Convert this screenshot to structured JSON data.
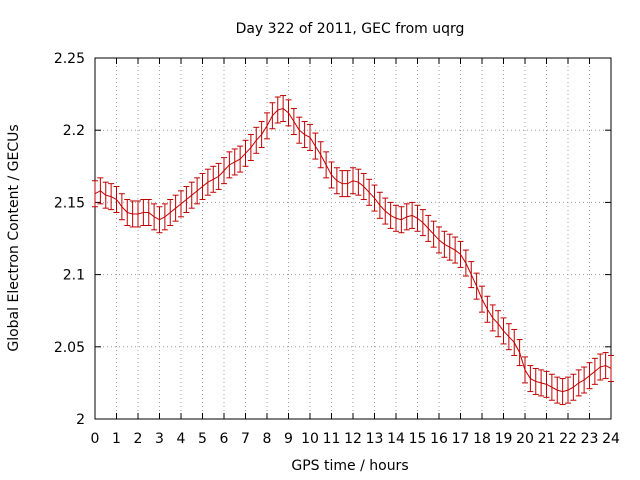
{
  "chart_data": {
    "type": "line",
    "title": "Day 322 of 2011, GEC from uqrg",
    "xlabel": "GPS time / hours",
    "ylabel": "Global Electron Content / GECUs",
    "xlim": [
      0,
      24
    ],
    "ylim": [
      2.0,
      2.25
    ],
    "x_ticks": [
      0,
      1,
      2,
      3,
      4,
      5,
      6,
      7,
      8,
      9,
      10,
      11,
      12,
      13,
      14,
      15,
      16,
      17,
      18,
      19,
      20,
      21,
      22,
      23,
      24
    ],
    "y_ticks": [
      2,
      2.05,
      2.1,
      2.15,
      2.2,
      2.25
    ],
    "y_tick_labels": [
      "2",
      "2.05",
      "2.1",
      "2.15",
      "2.2",
      "2.25"
    ],
    "grid": true,
    "legend": "none",
    "color": "#c00000",
    "error": 0.009,
    "series": [
      {
        "x": [
          0.0,
          0.25,
          0.5,
          0.75,
          1.0,
          1.25,
          1.5,
          1.75,
          2.0,
          2.25,
          2.5,
          2.75,
          3.0,
          3.25,
          3.5,
          3.75,
          4.0,
          4.25,
          4.5,
          4.75,
          5.0,
          5.25,
          5.5,
          5.75,
          6.0,
          6.25,
          6.5,
          6.75,
          7.0,
          7.25,
          7.5,
          7.75,
          8.0,
          8.25,
          8.5,
          8.75,
          9.0,
          9.25,
          9.5,
          9.75,
          10.0,
          10.25,
          10.5,
          10.75,
          11.0,
          11.25,
          11.5,
          11.75,
          12.0,
          12.25,
          12.5,
          12.75,
          13.0,
          13.25,
          13.5,
          13.75,
          14.0,
          14.25,
          14.5,
          14.75,
          15.0,
          15.25,
          15.5,
          15.75,
          16.0,
          16.25,
          16.5,
          16.75,
          17.0,
          17.25,
          17.5,
          17.75,
          18.0,
          18.25,
          18.5,
          18.75,
          19.0,
          19.25,
          19.5,
          19.75,
          20.0,
          20.25,
          20.5,
          20.75,
          21.0,
          21.25,
          21.5,
          21.75,
          22.0,
          22.25,
          22.5,
          22.75,
          23.0,
          23.25,
          23.5,
          23.75,
          24.0
        ],
        "y": [
          2.156,
          2.158,
          2.155,
          2.154,
          2.152,
          2.147,
          2.143,
          2.142,
          2.142,
          2.143,
          2.143,
          2.14,
          2.138,
          2.14,
          2.143,
          2.146,
          2.149,
          2.152,
          2.155,
          2.158,
          2.161,
          2.164,
          2.166,
          2.168,
          2.172,
          2.176,
          2.178,
          2.18,
          2.184,
          2.188,
          2.193,
          2.197,
          2.203,
          2.21,
          2.214,
          2.215,
          2.212,
          2.206,
          2.2,
          2.197,
          2.195,
          2.189,
          2.183,
          2.176,
          2.169,
          2.165,
          2.163,
          2.163,
          2.165,
          2.164,
          2.161,
          2.157,
          2.153,
          2.148,
          2.144,
          2.141,
          2.139,
          2.138,
          2.14,
          2.141,
          2.139,
          2.136,
          2.132,
          2.128,
          2.124,
          2.121,
          2.119,
          2.117,
          2.114,
          2.108,
          2.1,
          2.092,
          2.083,
          2.076,
          2.07,
          2.066,
          2.061,
          2.057,
          2.053,
          2.046,
          2.034,
          2.028,
          2.026,
          2.025,
          2.024,
          2.022,
          2.02,
          2.019,
          2.02,
          2.022,
          2.025,
          2.027,
          2.03,
          2.033,
          2.036,
          2.037,
          2.035
        ]
      }
    ]
  }
}
